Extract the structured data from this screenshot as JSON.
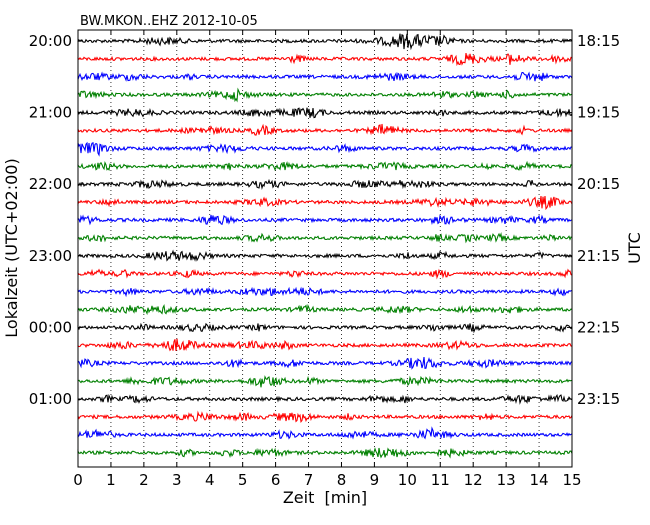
{
  "chart_data": {
    "type": "line",
    "title": "BW.MKON..EHZ 2012-10-05",
    "xlabel": "Zeit  [min]",
    "ylabel_left": "Lokalzeit (UTC+02:00)",
    "ylabel_right": "UTC",
    "xlim": [
      0,
      15
    ],
    "x_ticks": [
      "0",
      "1",
      "2",
      "3",
      "4",
      "5",
      "6",
      "7",
      "8",
      "9",
      "10",
      "11",
      "12",
      "13",
      "14",
      "15"
    ],
    "grid": "vertical dotted at each minute",
    "trace_interval_min": 15,
    "trace_count": 24,
    "trace_colors": [
      "#000000",
      "#ff0000",
      "#0000ff",
      "#008000"
    ],
    "left_time_labels": [
      "20:00",
      "21:00",
      "22:00",
      "23:00",
      "00:00",
      "01:00"
    ],
    "right_time_labels": [
      "18:15",
      "19:15",
      "20:15",
      "21:15",
      "22:15",
      "23:15"
    ]
  }
}
